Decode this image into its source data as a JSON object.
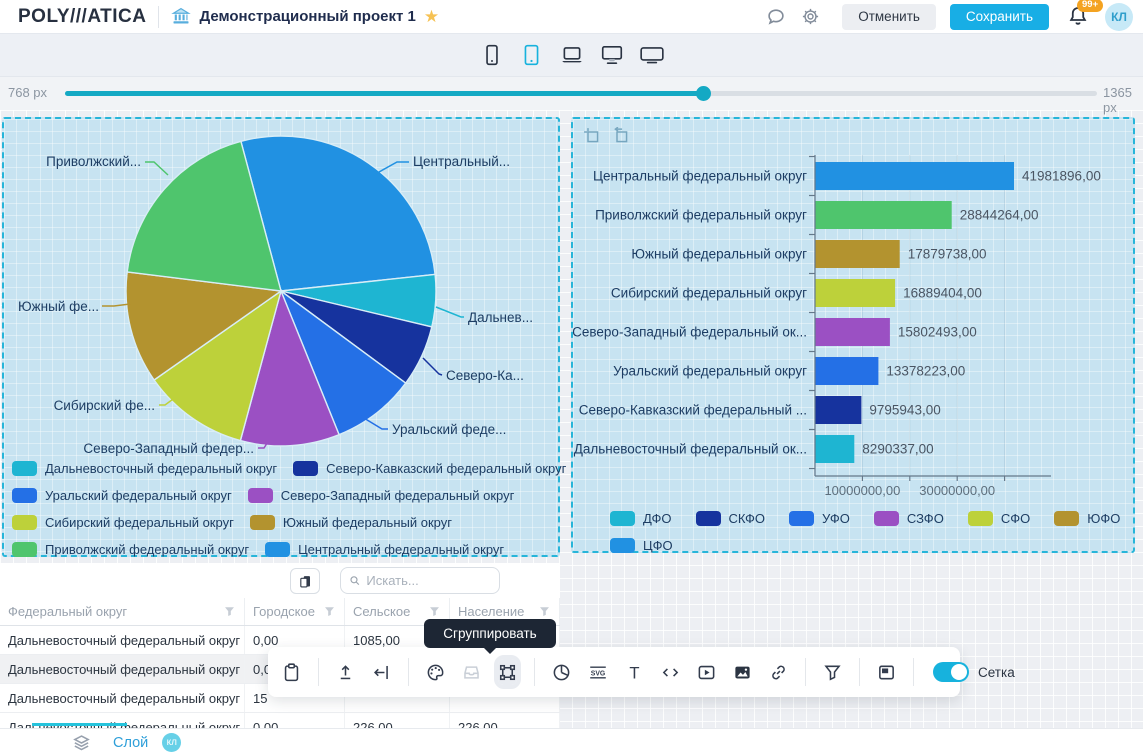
{
  "header": {
    "logo": "POLY///ATICA",
    "title": "Демонстрационный проект 1",
    "cancel_label": "Отменить",
    "save_label": "Сохранить",
    "notifications_badge": "99+",
    "avatar_initials": "КЛ"
  },
  "device_bar": {
    "devices": [
      "phone",
      "tablet",
      "laptop",
      "monitor",
      "tv"
    ],
    "selected": "tablet"
  },
  "width_slider": {
    "min_label": "768 px",
    "max_label": "1365 px"
  },
  "chart_data": [
    {
      "type": "pie",
      "items": [
        {
          "name": "Центральный федеральный округ",
          "abbr": "ЦФО",
          "value": 41981896,
          "color": "#2191e2",
          "callout": "Центральный..."
        },
        {
          "name": "Дальневосточный федеральный округ",
          "abbr": "ДФО",
          "value": 8290337,
          "color": "#1eb5d2",
          "callout": "Дальнев..."
        },
        {
          "name": "Северо-Кавказский федеральный округ",
          "abbr": "СКФО",
          "value": 9795943,
          "color": "#16339e",
          "callout": "Северо-Ка..."
        },
        {
          "name": "Уральский федеральный округ",
          "abbr": "УФО",
          "value": 13378223,
          "color": "#2470e6",
          "callout": "Уральский феде..."
        },
        {
          "name": "Северо-Западный федеральный округ",
          "abbr": "СЗФО",
          "value": 15802493,
          "color": "#9b50c3",
          "callout": "Северо-Западный федер..."
        },
        {
          "name": "Сибирский федеральный округ",
          "abbr": "СФО",
          "value": 16889404,
          "color": "#bdd13a",
          "callout": "Сибирский фе..."
        },
        {
          "name": "Южный федеральный округ",
          "abbr": "ЮФО",
          "value": 17879738,
          "color": "#b3932f",
          "callout": "Южный фе..."
        },
        {
          "name": "Приволжский федеральный округ",
          "abbr": "ПФО",
          "value": 28844264,
          "color": "#4fc56d",
          "callout": "Приволжский..."
        }
      ],
      "legend_rows": [
        [
          1,
          2
        ],
        [
          3,
          4
        ],
        [
          5,
          6
        ],
        [
          7,
          0
        ]
      ]
    },
    {
      "type": "bar",
      "orientation": "horizontal",
      "order": [
        0,
        7,
        6,
        5,
        4,
        3,
        2,
        1
      ],
      "categories": [
        "Центральный федеральный округ",
        "Приволжский федеральный округ",
        "Южный федеральный округ",
        "Сибирский федеральный округ",
        "Северо-Западный федеральный ок...",
        "Уральский федеральный округ",
        "Северо-Кавказский федеральный ...",
        "Дальневосточный федеральный ок..."
      ],
      "value_labels": [
        "41981896,00",
        "28844264,00",
        "17879738,00",
        "16889404,00",
        "15802493,00",
        "13378223,00",
        "9795943,00",
        "8290337,00"
      ],
      "x_ticks": [
        {
          "value": 10000000,
          "label": "10000000,00"
        },
        {
          "value": 20000000,
          "label": ""
        },
        {
          "value": 30000000,
          "label": "30000000,00"
        },
        {
          "value": 40000000,
          "label": ""
        }
      ],
      "legend_rows": [
        [
          1,
          2,
          3,
          4,
          5,
          6,
          7
        ],
        [
          0
        ]
      ]
    }
  ],
  "table": {
    "search_placeholder": "Искать...",
    "columns": [
      "Федеральный округ",
      "Городское",
      "Сельское",
      "Население"
    ],
    "rows": [
      [
        "Дальневосточный федеральный округ",
        "0,00",
        "1085,00",
        ""
      ],
      [
        "Дальневосточный федеральный округ",
        "0,0",
        "",
        ""
      ],
      [
        "Дальневосточный федеральный округ",
        "15",
        "",
        ""
      ],
      [
        "Дальневосточный федеральный округ",
        "0,00",
        "226,00",
        "226,00"
      ]
    ],
    "highlighted_row": 1
  },
  "tooltip": {
    "text": "Сгруппировать"
  },
  "toolbar": {
    "groups": [
      [
        "paste"
      ],
      [
        "upload",
        "collapse-left"
      ],
      [
        "palette",
        "tray",
        "group-frame"
      ],
      [
        "pie-chart",
        "svg",
        "text",
        "code",
        "video",
        "image",
        "link"
      ],
      [
        "filter"
      ],
      [
        "panel"
      ]
    ],
    "disabled": [
      "tray"
    ],
    "active": [
      "group-frame"
    ],
    "grid_toggle": {
      "label": "Сетка",
      "on": true
    }
  },
  "footer": {
    "layer_label": "Слой",
    "layer_badge": "кл"
  },
  "colors": {
    "accent": "#18aee5",
    "slider": "#14a9c4",
    "panel_border": "#27b5d9",
    "badge_orange": "#f4a321"
  }
}
